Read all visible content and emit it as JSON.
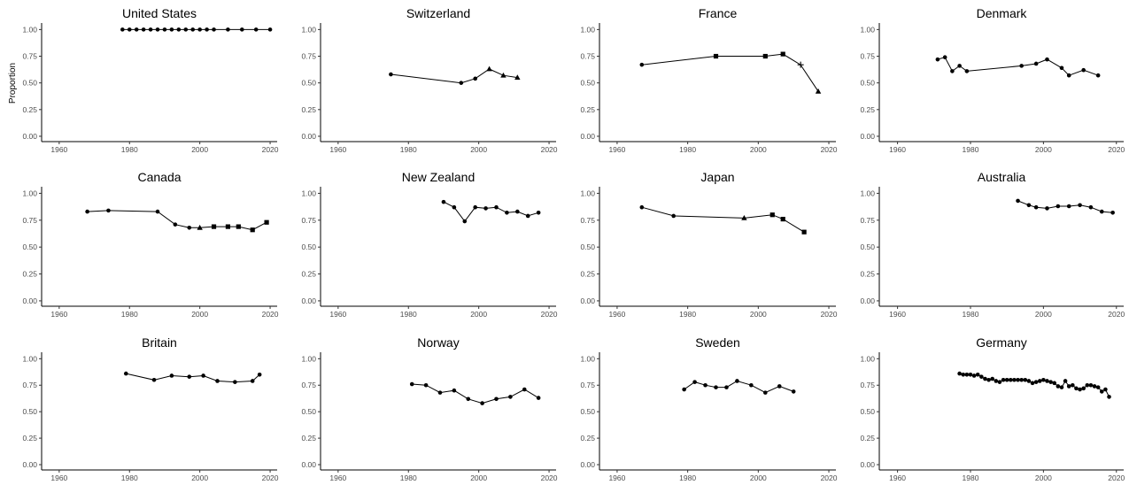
{
  "chart_data": {
    "type": "line",
    "layout": "facet 3x4",
    "ylabel": "Proportion",
    "xlabel": "",
    "xlim": [
      1955,
      2022
    ],
    "ylim": [
      0,
      1
    ],
    "x_ticks": [
      "1960",
      "1980",
      "2000",
      "2020"
    ],
    "y_ticks": [
      "0.00",
      "0.25",
      "0.50",
      "0.75",
      "1.00"
    ],
    "grid": false,
    "line_color": "#000000",
    "panels": [
      {
        "title": "United States",
        "points": [
          {
            "x": 1978,
            "y": 1.0,
            "m": "circle"
          },
          {
            "x": 1980,
            "y": 1.0,
            "m": "circle"
          },
          {
            "x": 1982,
            "y": 1.0,
            "m": "circle"
          },
          {
            "x": 1984,
            "y": 1.0,
            "m": "circle"
          },
          {
            "x": 1986,
            "y": 1.0,
            "m": "circle"
          },
          {
            "x": 1988,
            "y": 1.0,
            "m": "circle"
          },
          {
            "x": 1990,
            "y": 1.0,
            "m": "circle"
          },
          {
            "x": 1992,
            "y": 1.0,
            "m": "circle"
          },
          {
            "x": 1994,
            "y": 1.0,
            "m": "circle"
          },
          {
            "x": 1996,
            "y": 1.0,
            "m": "circle"
          },
          {
            "x": 1998,
            "y": 1.0,
            "m": "circle"
          },
          {
            "x": 2000,
            "y": 1.0,
            "m": "circle"
          },
          {
            "x": 2002,
            "y": 1.0,
            "m": "circle"
          },
          {
            "x": 2004,
            "y": 1.0,
            "m": "circle"
          },
          {
            "x": 2008,
            "y": 1.0,
            "m": "circle"
          },
          {
            "x": 2012,
            "y": 1.0,
            "m": "circle"
          },
          {
            "x": 2016,
            "y": 1.0,
            "m": "circle"
          },
          {
            "x": 2020,
            "y": 1.0,
            "m": "circle"
          }
        ]
      },
      {
        "title": "Switzerland",
        "points": [
          {
            "x": 1975,
            "y": 0.58,
            "m": "circle"
          },
          {
            "x": 1995,
            "y": 0.5,
            "m": "circle"
          },
          {
            "x": 1999,
            "y": 0.54,
            "m": "circle"
          },
          {
            "x": 2003,
            "y": 0.63,
            "m": "triangle"
          },
          {
            "x": 2007,
            "y": 0.57,
            "m": "triangle"
          },
          {
            "x": 2011,
            "y": 0.55,
            "m": "triangle"
          }
        ]
      },
      {
        "title": "France",
        "points": [
          {
            "x": 1967,
            "y": 0.67,
            "m": "circle"
          },
          {
            "x": 1988,
            "y": 0.75,
            "m": "square"
          },
          {
            "x": 2002,
            "y": 0.75,
            "m": "square"
          },
          {
            "x": 2007,
            "y": 0.77,
            "m": "square"
          },
          {
            "x": 2012,
            "y": 0.67,
            "m": "plus"
          },
          {
            "x": 2017,
            "y": 0.42,
            "m": "triangle"
          }
        ]
      },
      {
        "title": "Denmark",
        "points": [
          {
            "x": 1971,
            "y": 0.72,
            "m": "circle"
          },
          {
            "x": 1973,
            "y": 0.74,
            "m": "circle"
          },
          {
            "x": 1975,
            "y": 0.61,
            "m": "circle"
          },
          {
            "x": 1977,
            "y": 0.66,
            "m": "circle"
          },
          {
            "x": 1979,
            "y": 0.61,
            "m": "circle"
          },
          {
            "x": 1994,
            "y": 0.66,
            "m": "circle"
          },
          {
            "x": 1998,
            "y": 0.68,
            "m": "circle"
          },
          {
            "x": 2001,
            "y": 0.72,
            "m": "circle"
          },
          {
            "x": 2005,
            "y": 0.64,
            "m": "circle"
          },
          {
            "x": 2007,
            "y": 0.57,
            "m": "circle"
          },
          {
            "x": 2011,
            "y": 0.62,
            "m": "circle"
          },
          {
            "x": 2015,
            "y": 0.57,
            "m": "circle"
          }
        ]
      },
      {
        "title": "Canada",
        "points": [
          {
            "x": 1968,
            "y": 0.83,
            "m": "circle"
          },
          {
            "x": 1974,
            "y": 0.84,
            "m": "circle"
          },
          {
            "x": 1988,
            "y": 0.83,
            "m": "circle"
          },
          {
            "x": 1993,
            "y": 0.71,
            "m": "circle"
          },
          {
            "x": 1997,
            "y": 0.68,
            "m": "circle"
          },
          {
            "x": 2000,
            "y": 0.68,
            "m": "triangle"
          },
          {
            "x": 2004,
            "y": 0.69,
            "m": "square"
          },
          {
            "x": 2008,
            "y": 0.69,
            "m": "square"
          },
          {
            "x": 2011,
            "y": 0.69,
            "m": "square"
          },
          {
            "x": 2015,
            "y": 0.66,
            "m": "square"
          },
          {
            "x": 2019,
            "y": 0.73,
            "m": "square"
          }
        ]
      },
      {
        "title": "New Zealand",
        "points": [
          {
            "x": 1990,
            "y": 0.92,
            "m": "circle"
          },
          {
            "x": 1993,
            "y": 0.87,
            "m": "circle"
          },
          {
            "x": 1996,
            "y": 0.74,
            "m": "circle"
          },
          {
            "x": 1999,
            "y": 0.87,
            "m": "circle"
          },
          {
            "x": 2002,
            "y": 0.86,
            "m": "circle"
          },
          {
            "x": 2005,
            "y": 0.87,
            "m": "circle"
          },
          {
            "x": 2008,
            "y": 0.82,
            "m": "circle"
          },
          {
            "x": 2011,
            "y": 0.83,
            "m": "circle"
          },
          {
            "x": 2014,
            "y": 0.79,
            "m": "circle"
          },
          {
            "x": 2017,
            "y": 0.82,
            "m": "circle"
          }
        ]
      },
      {
        "title": "Japan",
        "points": [
          {
            "x": 1967,
            "y": 0.87,
            "m": "circle"
          },
          {
            "x": 1976,
            "y": 0.79,
            "m": "circle"
          },
          {
            "x": 1996,
            "y": 0.77,
            "m": "triangle"
          },
          {
            "x": 2004,
            "y": 0.8,
            "m": "square"
          },
          {
            "x": 2007,
            "y": 0.76,
            "m": "square"
          },
          {
            "x": 2013,
            "y": 0.64,
            "m": "square"
          }
        ]
      },
      {
        "title": "Australia",
        "points": [
          {
            "x": 1993,
            "y": 0.93,
            "m": "circle"
          },
          {
            "x": 1996,
            "y": 0.89,
            "m": "circle"
          },
          {
            "x": 1998,
            "y": 0.87,
            "m": "circle"
          },
          {
            "x": 2001,
            "y": 0.86,
            "m": "circle"
          },
          {
            "x": 2004,
            "y": 0.88,
            "m": "circle"
          },
          {
            "x": 2007,
            "y": 0.88,
            "m": "circle"
          },
          {
            "x": 2010,
            "y": 0.89,
            "m": "circle"
          },
          {
            "x": 2013,
            "y": 0.87,
            "m": "circle"
          },
          {
            "x": 2016,
            "y": 0.83,
            "m": "circle"
          },
          {
            "x": 2019,
            "y": 0.82,
            "m": "circle"
          }
        ]
      },
      {
        "title": "Britain",
        "points": [
          {
            "x": 1979,
            "y": 0.86,
            "m": "circle"
          },
          {
            "x": 1987,
            "y": 0.8,
            "m": "circle"
          },
          {
            "x": 1992,
            "y": 0.84,
            "m": "circle"
          },
          {
            "x": 1997,
            "y": 0.83,
            "m": "circle"
          },
          {
            "x": 2001,
            "y": 0.84,
            "m": "circle"
          },
          {
            "x": 2005,
            "y": 0.79,
            "m": "circle"
          },
          {
            "x": 2010,
            "y": 0.78,
            "m": "circle"
          },
          {
            "x": 2015,
            "y": 0.79,
            "m": "circle"
          },
          {
            "x": 2017,
            "y": 0.85,
            "m": "circle"
          }
        ]
      },
      {
        "title": "Norway",
        "points": [
          {
            "x": 1981,
            "y": 0.76,
            "m": "circle"
          },
          {
            "x": 1985,
            "y": 0.75,
            "m": "circle"
          },
          {
            "x": 1989,
            "y": 0.68,
            "m": "circle"
          },
          {
            "x": 1993,
            "y": 0.7,
            "m": "circle"
          },
          {
            "x": 1997,
            "y": 0.62,
            "m": "circle"
          },
          {
            "x": 2001,
            "y": 0.58,
            "m": "circle"
          },
          {
            "x": 2005,
            "y": 0.62,
            "m": "circle"
          },
          {
            "x": 2009,
            "y": 0.64,
            "m": "circle"
          },
          {
            "x": 2013,
            "y": 0.71,
            "m": "circle"
          },
          {
            "x": 2017,
            "y": 0.63,
            "m": "circle"
          }
        ]
      },
      {
        "title": "Sweden",
        "points": [
          {
            "x": 1979,
            "y": 0.71,
            "m": "circle"
          },
          {
            "x": 1982,
            "y": 0.78,
            "m": "circle"
          },
          {
            "x": 1985,
            "y": 0.75,
            "m": "circle"
          },
          {
            "x": 1988,
            "y": 0.73,
            "m": "circle"
          },
          {
            "x": 1991,
            "y": 0.73,
            "m": "circle"
          },
          {
            "x": 1994,
            "y": 0.79,
            "m": "circle"
          },
          {
            "x": 1998,
            "y": 0.75,
            "m": "circle"
          },
          {
            "x": 2002,
            "y": 0.68,
            "m": "circle"
          },
          {
            "x": 2006,
            "y": 0.74,
            "m": "circle"
          },
          {
            "x": 2010,
            "y": 0.69,
            "m": "circle"
          }
        ]
      },
      {
        "title": "Germany",
        "points": [
          {
            "x": 1977,
            "y": 0.86,
            "m": "circle"
          },
          {
            "x": 1978,
            "y": 0.85,
            "m": "circle"
          },
          {
            "x": 1979,
            "y": 0.85,
            "m": "circle"
          },
          {
            "x": 1980,
            "y": 0.85,
            "m": "circle"
          },
          {
            "x": 1981,
            "y": 0.84,
            "m": "circle"
          },
          {
            "x": 1982,
            "y": 0.85,
            "m": "circle"
          },
          {
            "x": 1983,
            "y": 0.83,
            "m": "circle"
          },
          {
            "x": 1984,
            "y": 0.81,
            "m": "circle"
          },
          {
            "x": 1985,
            "y": 0.8,
            "m": "circle"
          },
          {
            "x": 1986,
            "y": 0.81,
            "m": "circle"
          },
          {
            "x": 1987,
            "y": 0.79,
            "m": "circle"
          },
          {
            "x": 1988,
            "y": 0.78,
            "m": "circle"
          },
          {
            "x": 1989,
            "y": 0.8,
            "m": "circle"
          },
          {
            "x": 1990,
            "y": 0.8,
            "m": "circle"
          },
          {
            "x": 1991,
            "y": 0.8,
            "m": "circle"
          },
          {
            "x": 1992,
            "y": 0.8,
            "m": "circle"
          },
          {
            "x": 1993,
            "y": 0.8,
            "m": "circle"
          },
          {
            "x": 1994,
            "y": 0.8,
            "m": "circle"
          },
          {
            "x": 1995,
            "y": 0.8,
            "m": "circle"
          },
          {
            "x": 1996,
            "y": 0.79,
            "m": "circle"
          },
          {
            "x": 1997,
            "y": 0.77,
            "m": "circle"
          },
          {
            "x": 1998,
            "y": 0.78,
            "m": "circle"
          },
          {
            "x": 1999,
            "y": 0.79,
            "m": "circle"
          },
          {
            "x": 2000,
            "y": 0.8,
            "m": "circle"
          },
          {
            "x": 2001,
            "y": 0.79,
            "m": "circle"
          },
          {
            "x": 2002,
            "y": 0.78,
            "m": "circle"
          },
          {
            "x": 2003,
            "y": 0.77,
            "m": "circle"
          },
          {
            "x": 2004,
            "y": 0.74,
            "m": "circle"
          },
          {
            "x": 2005,
            "y": 0.73,
            "m": "circle"
          },
          {
            "x": 2006,
            "y": 0.79,
            "m": "circle"
          },
          {
            "x": 2007,
            "y": 0.74,
            "m": "circle"
          },
          {
            "x": 2008,
            "y": 0.75,
            "m": "circle"
          },
          {
            "x": 2009,
            "y": 0.72,
            "m": "circle"
          },
          {
            "x": 2010,
            "y": 0.71,
            "m": "circle"
          },
          {
            "x": 2011,
            "y": 0.72,
            "m": "circle"
          },
          {
            "x": 2012,
            "y": 0.75,
            "m": "circle"
          },
          {
            "x": 2013,
            "y": 0.75,
            "m": "circle"
          },
          {
            "x": 2014,
            "y": 0.74,
            "m": "circle"
          },
          {
            "x": 2015,
            "y": 0.73,
            "m": "circle"
          },
          {
            "x": 2016,
            "y": 0.69,
            "m": "circle"
          },
          {
            "x": 2017,
            "y": 0.71,
            "m": "circle"
          },
          {
            "x": 2018,
            "y": 0.64,
            "m": "circle"
          }
        ]
      }
    ]
  }
}
